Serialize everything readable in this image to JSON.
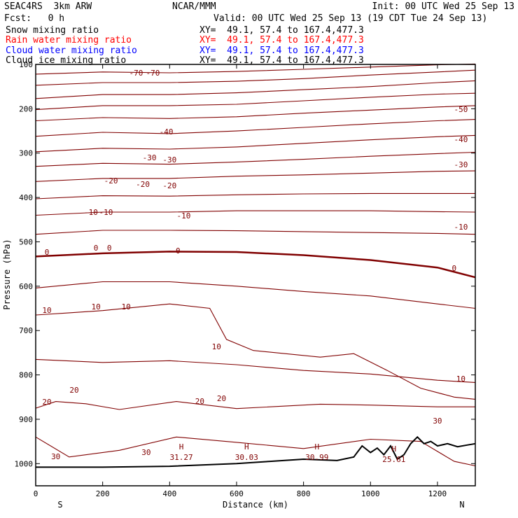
{
  "header": {
    "model": "SEAC4RS  3km ARW",
    "org": "NCAR/MMM",
    "init": "Init: 00 UTC Wed 25 Sep 13",
    "fcst": "Fcst:   0 h",
    "valid": "Valid: 00 UTC Wed 25 Sep 13 (19 CDT Tue 24 Sep 13)",
    "fields": [
      {
        "name": "Snow mixing ratio",
        "xy": "XY=  49.1, 57.4 to 167.4,477.3",
        "color": "#000000"
      },
      {
        "name": "Rain water mixing ratio",
        "xy": "XY=  49.1, 57.4 to 167.4,477.3",
        "color": "#ff0000"
      },
      {
        "name": "Cloud water mixing ratio",
        "xy": "XY=  49.1, 57.4 to 167.4,477.3",
        "color": "#0000ff"
      },
      {
        "name": "Cloud ice mixing ratio",
        "xy": "XY=  49.1, 57.4 to 167.4,477.3",
        "color": "#000000"
      }
    ]
  },
  "chart_data": {
    "type": "line",
    "xlabel": "Distance (km)",
    "ylabel": "Pressure (hPa)",
    "xlim": [
      0,
      1313
    ],
    "ylim": [
      1050,
      100
    ],
    "xticks": [
      "0",
      "200",
      "400",
      "600",
      "800",
      "1000",
      "1200"
    ],
    "yticks": [
      "100",
      "200",
      "300",
      "400",
      "500",
      "600",
      "700",
      "800",
      "900",
      "1000"
    ],
    "x_end_labels": {
      "left": "S",
      "right": "N"
    },
    "contour_color": "#800000",
    "zero_contour_color": "#800000",
    "series": [
      {
        "x": [
          0,
          200,
          400,
          600,
          800,
          1000,
          1200,
          1313
        ],
        "values": [
          122,
          117,
          119,
          116,
          111,
          106,
          101,
          99
        ]
      },
      {
        "x": [
          0,
          200,
          400,
          600,
          800,
          1000,
          1200,
          1313
        ],
        "values": [
          147,
          141,
          141,
          138,
          132,
          124,
          117,
          113
        ]
      },
      {
        "x": [
          0,
          200,
          400,
          600,
          800,
          1000,
          1200,
          1313
        ],
        "values": [
          177,
          168,
          168,
          164,
          157,
          150,
          141,
          137
        ]
      },
      {
        "x": [
          0,
          200,
          400,
          600,
          800,
          1000,
          1200,
          1313
        ],
        "values": [
          202,
          193,
          193,
          190,
          182,
          174,
          167,
          165
        ]
      },
      {
        "x": [
          0,
          200,
          400,
          600,
          800,
          1000,
          1200,
          1313
        ],
        "values": [
          227,
          220,
          222,
          218,
          210,
          203,
          196,
          193
        ]
      },
      {
        "x": [
          0,
          200,
          400,
          600,
          800,
          1000,
          1200,
          1313
        ],
        "values": [
          262,
          253,
          256,
          250,
          242,
          234,
          227,
          224
        ]
      },
      {
        "x": [
          0,
          200,
          400,
          600,
          800,
          1000,
          1200,
          1313
        ],
        "values": [
          297,
          289,
          291,
          286,
          278,
          270,
          263,
          260
        ]
      },
      {
        "x": [
          0,
          200,
          400,
          600,
          800,
          1000,
          1200,
          1313
        ],
        "values": [
          330,
          323,
          325,
          320,
          314,
          307,
          301,
          298
        ]
      },
      {
        "x": [
          0,
          200,
          400,
          600,
          800,
          1000,
          1200,
          1313
        ],
        "values": [
          364,
          357,
          357,
          352,
          349,
          345,
          341,
          340
        ]
      },
      {
        "x": [
          0,
          200,
          400,
          600,
          800,
          1000,
          1200,
          1313
        ],
        "values": [
          403,
          396,
          397,
          394,
          392,
          391,
          391,
          391
        ]
      },
      {
        "x": [
          0,
          200,
          400,
          600,
          800,
          1000,
          1200,
          1313
        ],
        "values": [
          440,
          433,
          433,
          430,
          430,
          430,
          432,
          433
        ]
      },
      {
        "x": [
          0,
          200,
          400,
          600,
          800,
          1000,
          1200,
          1313
        ],
        "values": [
          483,
          474,
          474,
          475,
          477,
          479,
          481,
          483
        ]
      },
      {
        "x": [
          0,
          200,
          400,
          600,
          800,
          1000,
          1200,
          1313
        ],
        "values": [
          533,
          526,
          522,
          523,
          530,
          541,
          558,
          580
        ]
      },
      {
        "x": [
          0,
          200,
          400,
          600,
          800,
          1000,
          1200,
          1313
        ],
        "values": [
          604,
          590,
          590,
          600,
          612,
          622,
          640,
          650
        ]
      },
      {
        "x": [
          0,
          100,
          200,
          400,
          520,
          570,
          650,
          850,
          950,
          1050,
          1150,
          1250,
          1313
        ],
        "values": [
          665,
          660,
          655,
          640,
          650,
          720,
          745,
          760,
          752,
          790,
          830,
          850,
          855
        ]
      },
      {
        "x": [
          0,
          200,
          400,
          600,
          800,
          1000,
          1200,
          1313
        ],
        "values": [
          765,
          772,
          768,
          777,
          790,
          798,
          812,
          817
        ]
      },
      {
        "x": [
          0,
          60,
          150,
          250,
          420,
          600,
          850,
          1000,
          1200,
          1313
        ],
        "values": [
          875,
          860,
          865,
          878,
          860,
          876,
          866,
          868,
          872,
          872
        ]
      },
      {
        "x": [
          0,
          100,
          250,
          420,
          600,
          800,
          1000,
          1150,
          1250,
          1313
        ],
        "values": [
          940,
          985,
          970,
          940,
          952,
          966,
          945,
          950,
          995,
          1005
        ]
      }
    ],
    "contour_labels": [
      "-70",
      "-70",
      "-50",
      "-40",
      "-40",
      "-30",
      "-30",
      "-30",
      "-20",
      "-20",
      "-20",
      "-10",
      "-10",
      "-10",
      "-10",
      "0",
      "0",
      "0",
      "0",
      "0",
      "10",
      "10",
      "10",
      "10",
      "10",
      "20",
      "20",
      "20",
      "20",
      "30",
      "30"
    ],
    "annotations": [
      {
        "text": "H",
        "value": "31.27"
      },
      {
        "text": "H",
        "value": "30.03"
      },
      {
        "text": "H",
        "value": "30.99"
      },
      {
        "text": "H",
        "value": "25.61"
      }
    ],
    "terrain_series": {
      "name": "terrain",
      "x": [
        0,
        200,
        400,
        600,
        700,
        800,
        900,
        950,
        975,
        1000,
        1020,
        1040,
        1060,
        1080,
        1100,
        1120,
        1140,
        1160,
        1180,
        1200,
        1230,
        1260,
        1290,
        1313
      ],
      "values": [
        1008,
        1008,
        1006,
        1000,
        995,
        990,
        993,
        985,
        960,
        975,
        965,
        980,
        960,
        990,
        980,
        955,
        940,
        955,
        950,
        960,
        955,
        962,
        958,
        955
      ]
    },
    "grid": false
  }
}
